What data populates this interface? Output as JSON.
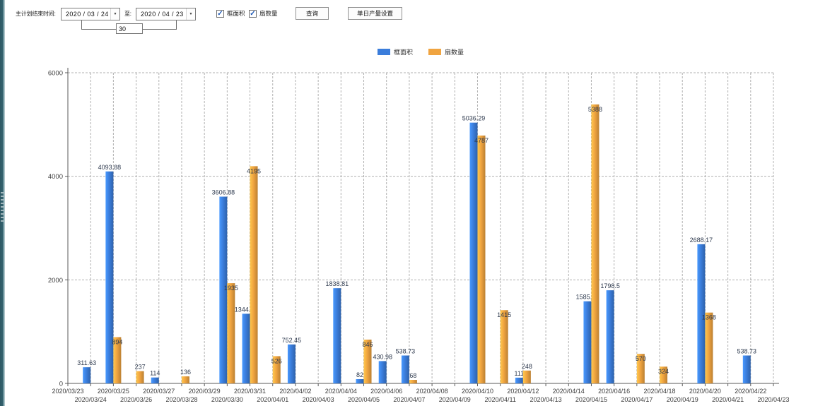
{
  "header": {
    "label": "主计划结束时间:",
    "date_from": "2020 / 03 / 24",
    "date_to_label": "至:",
    "date_to": "2020 / 04 / 23",
    "interval_value": "30",
    "checkboxes": [
      {
        "label": "框面积",
        "checked": true
      },
      {
        "label": "扇数量",
        "checked": true
      }
    ],
    "query_button": "查询",
    "daily_output_button": "单日产量设置"
  },
  "icons": {
    "checkbox_check": "✓",
    "dropdown_arrow": "▼"
  },
  "chart_data": {
    "type": "bar",
    "title": "",
    "categories": [
      "2020/03/23",
      "2020/03/24",
      "2020/03/25",
      "2020/03/26",
      "2020/03/27",
      "2020/03/28",
      "2020/03/29",
      "2020/03/30",
      "2020/03/31",
      "2020/04/01",
      "2020/04/02",
      "2020/04/03",
      "2020/04/04",
      "2020/04/05",
      "2020/04/06",
      "2020/04/07",
      "2020/04/08",
      "2020/04/09",
      "2020/04/10",
      "2020/04/11",
      "2020/04/12",
      "2020/04/13",
      "2020/04/14",
      "2020/04/15",
      "2020/04/16",
      "2020/04/17",
      "2020/04/18",
      "2020/04/19",
      "2020/04/20",
      "2020/04/21",
      "2020/04/22",
      "2020/04/23"
    ],
    "series": [
      {
        "name": "框面积",
        "color": "#3B7DDB",
        "values": [
          null,
          311.63,
          4093.88,
          null,
          114,
          null,
          null,
          3606.88,
          1344.95,
          null,
          752.45,
          null,
          1838.81,
          82,
          430.98,
          538.73,
          null,
          null,
          5036.29,
          null,
          111,
          null,
          null,
          1585.96,
          1798.5,
          null,
          null,
          null,
          2688.17,
          null,
          538.73,
          null
        ]
      },
      {
        "name": "扇数量",
        "color": "#F0A440",
        "values": [
          null,
          null,
          894,
          237,
          null,
          136,
          null,
          1935,
          4195,
          526,
          null,
          null,
          null,
          846,
          null,
          68,
          null,
          null,
          4787,
          1415,
          248,
          null,
          null,
          5388,
          null,
          570,
          324,
          null,
          1368,
          null,
          null,
          null
        ]
      }
    ],
    "ylim": [
      0,
      6000
    ],
    "yticks": [
      0,
      2000,
      4000,
      6000
    ],
    "grid": true,
    "legend_position": "top"
  }
}
